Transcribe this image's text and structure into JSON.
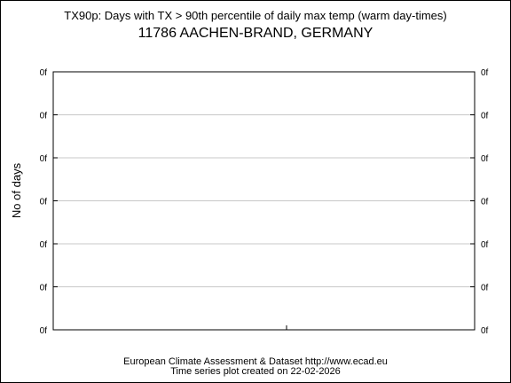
{
  "chart_data": {
    "type": "line",
    "title": "TX90p: Days with TX > 90th percentile of daily max temp (warm day-times)",
    "subtitle": "11786 AACHEN-BRAND, GERMANY",
    "ylabel": "No of days",
    "xlabel": "",
    "y_tick_labels": [
      "0f",
      "0f",
      "0f",
      "0f",
      "0f",
      "0f",
      "0f"
    ],
    "x_tick_labels": [],
    "grid": true,
    "series": []
  },
  "footer": {
    "line1": "European Climate Assessment & Dataset  http://www.ecad.eu",
    "line2": "Time series plot created on 22-02-2026"
  }
}
